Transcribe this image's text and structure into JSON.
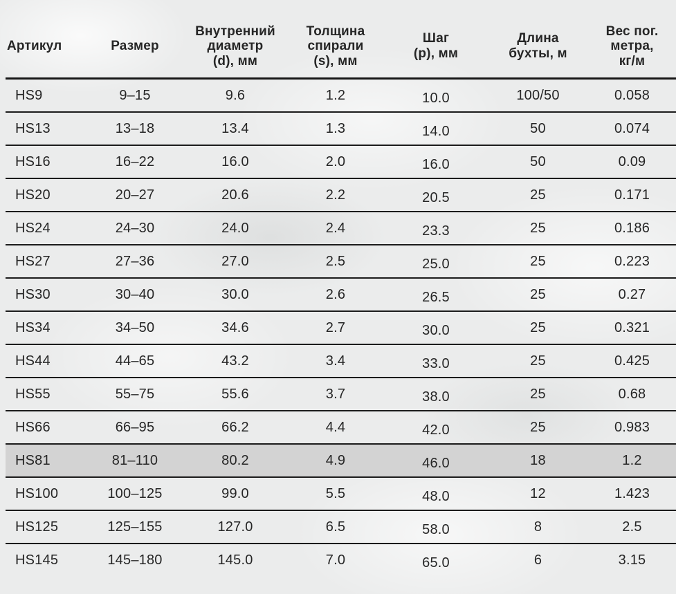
{
  "style": {
    "background_color": "#ebecec",
    "line_color": "#161616",
    "text_color": "#262626",
    "highlight_color": "#d3d3d3"
  },
  "chart_data": {
    "type": "table",
    "title": "",
    "columns": [
      {
        "key": "article",
        "label": "Артикул"
      },
      {
        "key": "size",
        "label": "Размер"
      },
      {
        "key": "inner_diameter",
        "label": "Внутренний\nдиаметр\n(d), мм"
      },
      {
        "key": "spiral_thickness",
        "label": "Толщина\nспирали\n(s), мм"
      },
      {
        "key": "pitch",
        "label": "Шаг\n(p), мм"
      },
      {
        "key": "coil_length",
        "label": "Длина\nбухты, м"
      },
      {
        "key": "weight",
        "label": "Вес пог.\nметра,\nкг/м"
      }
    ],
    "highlighted_article": "HS81",
    "rows": [
      {
        "article": "HS9",
        "size": "9–15",
        "inner_diameter": "9.6",
        "spiral_thickness": "1.2",
        "pitch": "10.0",
        "coil_length": "100/50",
        "weight": "0.058",
        "highlighted": false
      },
      {
        "article": "HS13",
        "size": "13–18",
        "inner_diameter": "13.4",
        "spiral_thickness": "1.3",
        "pitch": "14.0",
        "coil_length": "50",
        "weight": "0.074",
        "highlighted": false
      },
      {
        "article": "HS16",
        "size": "16–22",
        "inner_diameter": "16.0",
        "spiral_thickness": "2.0",
        "pitch": "16.0",
        "coil_length": "50",
        "weight": "0.09",
        "highlighted": false
      },
      {
        "article": "HS20",
        "size": "20–27",
        "inner_diameter": "20.6",
        "spiral_thickness": "2.2",
        "pitch": "20.5",
        "coil_length": "25",
        "weight": "0.171",
        "highlighted": false
      },
      {
        "article": "HS24",
        "size": "24–30",
        "inner_diameter": "24.0",
        "spiral_thickness": "2.4",
        "pitch": "23.3",
        "coil_length": "25",
        "weight": "0.186",
        "highlighted": false
      },
      {
        "article": "HS27",
        "size": "27–36",
        "inner_diameter": "27.0",
        "spiral_thickness": "2.5",
        "pitch": "25.0",
        "coil_length": "25",
        "weight": "0.223",
        "highlighted": false
      },
      {
        "article": "HS30",
        "size": "30–40",
        "inner_diameter": "30.0",
        "spiral_thickness": "2.6",
        "pitch": "26.5",
        "coil_length": "25",
        "weight": "0.27",
        "highlighted": false
      },
      {
        "article": "HS34",
        "size": "34–50",
        "inner_diameter": "34.6",
        "spiral_thickness": "2.7",
        "pitch": "30.0",
        "coil_length": "25",
        "weight": "0.321",
        "highlighted": false
      },
      {
        "article": "HS44",
        "size": "44–65",
        "inner_diameter": "43.2",
        "spiral_thickness": "3.4",
        "pitch": "33.0",
        "coil_length": "25",
        "weight": "0.425",
        "highlighted": false
      },
      {
        "article": "HS55",
        "size": "55–75",
        "inner_diameter": "55.6",
        "spiral_thickness": "3.7",
        "pitch": "38.0",
        "coil_length": "25",
        "weight": "0.68",
        "highlighted": false
      },
      {
        "article": "HS66",
        "size": "66–95",
        "inner_diameter": "66.2",
        "spiral_thickness": "4.4",
        "pitch": "42.0",
        "coil_length": "25",
        "weight": "0.983",
        "highlighted": false
      },
      {
        "article": "HS81",
        "size": "81–110",
        "inner_diameter": "80.2",
        "spiral_thickness": "4.9",
        "pitch": "46.0",
        "coil_length": "18",
        "weight": "1.2",
        "highlighted": true
      },
      {
        "article": "HS100",
        "size": "100–125",
        "inner_diameter": "99.0",
        "spiral_thickness": "5.5",
        "pitch": "48.0",
        "coil_length": "12",
        "weight": "1.423",
        "highlighted": false
      },
      {
        "article": "HS125",
        "size": "125–155",
        "inner_diameter": "127.0",
        "spiral_thickness": "6.5",
        "pitch": "58.0",
        "coil_length": "8",
        "weight": "2.5",
        "highlighted": false
      },
      {
        "article": "HS145",
        "size": "145–180",
        "inner_diameter": "145.0",
        "spiral_thickness": "7.0",
        "pitch": "65.0",
        "coil_length": "6",
        "weight": "3.15",
        "highlighted": false
      }
    ]
  }
}
